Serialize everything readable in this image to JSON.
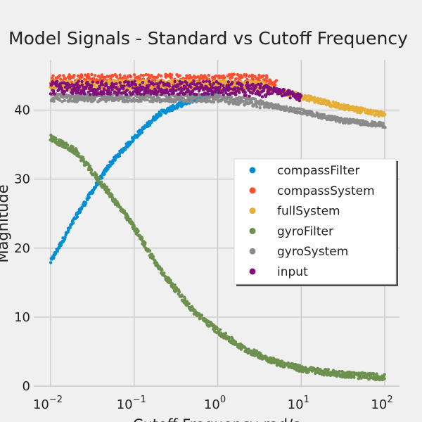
{
  "chart_data": {
    "type": "scatter",
    "title": "Model Signals - Standard vs Cutoff Frequency",
    "xlabel": "Cutoff Frequency rad/s",
    "ylabel": "Magnitude",
    "x_scale": "log",
    "xlim": [
      0.01,
      100
    ],
    "ylim": [
      0,
      48
    ],
    "x_ticks": [
      {
        "value": 0.01,
        "base": "10",
        "exp": "−2"
      },
      {
        "value": 0.1,
        "base": "10",
        "exp": "−1"
      },
      {
        "value": 1,
        "base": "10",
        "exp": "0"
      },
      {
        "value": 10,
        "base": "10",
        "exp": "1"
      },
      {
        "value": 100,
        "base": "10",
        "exp": "2"
      }
    ],
    "y_ticks": [
      "0",
      "10",
      "20",
      "30",
      "40"
    ],
    "grid": true,
    "legend_position": "center-right",
    "series": [
      {
        "name": "compassFilter",
        "color": "#008fd5",
        "x": [
          0.01,
          0.02,
          0.05,
          0.1,
          0.2,
          0.5,
          1
        ],
        "y": [
          18,
          24.5,
          32,
          36,
          39.5,
          41.5,
          42.5
        ]
      },
      {
        "name": "compassSystem",
        "color": "#fc4f30",
        "x": [
          0.01,
          0.1,
          1,
          3,
          5
        ],
        "y": [
          44.2,
          44.2,
          44.2,
          44.2,
          43.8
        ]
      },
      {
        "name": "fullSystem",
        "color": "#e5ae38",
        "x": [
          0.01,
          0.1,
          1,
          3,
          10,
          30,
          100
        ],
        "y": [
          43.6,
          43.6,
          43.6,
          43.5,
          42,
          40.5,
          39.3
        ]
      },
      {
        "name": "gyroFilter",
        "color": "#6d904f",
        "x": [
          0.01,
          0.02,
          0.05,
          0.1,
          0.2,
          0.5,
          1,
          2,
          5,
          10,
          20,
          50,
          100
        ],
        "y": [
          36,
          34,
          28,
          23,
          17,
          11,
          8,
          5.5,
          3.5,
          2.5,
          2,
          1.5,
          1.3
        ]
      },
      {
        "name": "gyroSystem",
        "color": "#8b8b8b",
        "x": [
          0.01,
          0.1,
          1,
          3,
          10,
          30,
          100
        ],
        "y": [
          41.8,
          41.8,
          41.7,
          41,
          39.8,
          38.5,
          37.8
        ]
      },
      {
        "name": "input",
        "color": "#810f7c",
        "x": [
          0.01,
          0.1,
          1,
          5,
          10
        ],
        "y": [
          43.2,
          43.2,
          43.2,
          42.8,
          41.8
        ]
      }
    ]
  }
}
